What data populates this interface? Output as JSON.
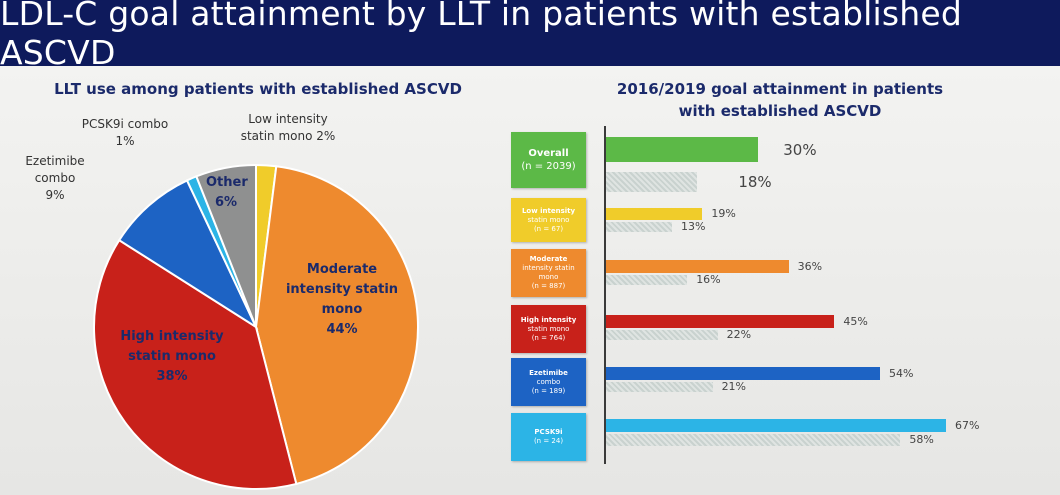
{
  "page_title": "LDL-C goal attainment by LLT in patients with established ASCVD",
  "colors": {
    "header_bg": "#0e1a5c",
    "title_text": "#1b2a6b",
    "low_intensity": "#f0cc2a",
    "moderate": "#ee8a2e",
    "high": "#c8211a",
    "ezetimibe": "#1d63c4",
    "pcsk9i": "#2cb4e6",
    "other": "#8f9090",
    "overall": "#5cb947",
    "year_2016_hatch": "#cfd6d4"
  },
  "chart_data": [
    {
      "type": "pie",
      "title": "LLT use among patients with established ASCVD",
      "slices": [
        {
          "name": "Low intensity statin mono",
          "label_lines": [
            "Low intensity",
            "statin mono 2%"
          ],
          "value": 2,
          "color": "#f0cc2a"
        },
        {
          "name": "Moderate intensity statin mono",
          "label_lines": [
            "Moderate",
            "intensity statin",
            "mono",
            "44%"
          ],
          "value": 44,
          "color": "#ee8a2e"
        },
        {
          "name": "High intensity statin mono",
          "label_lines": [
            "High intensity",
            "statin mono",
            "38%"
          ],
          "value": 38,
          "color": "#c8211a"
        },
        {
          "name": "Ezetimibe combo",
          "label_lines": [
            "Ezetimibe",
            "combo",
            "9%"
          ],
          "value": 9,
          "color": "#1d63c4"
        },
        {
          "name": "PCSK9i combo",
          "label_lines": [
            "PCSK9i combo",
            "1%"
          ],
          "value": 1,
          "color": "#2cb4e6"
        },
        {
          "name": "Other",
          "label_lines": [
            "Other",
            "6%"
          ],
          "value": 6,
          "color": "#8f9090"
        }
      ]
    },
    {
      "type": "bar",
      "orientation": "horizontal",
      "title_lines": [
        "2016/2019 goal attainment in patients",
        "with established ASCVD"
      ],
      "xlim": [
        0,
        67
      ],
      "categories": [
        {
          "label_lines": [
            "Overall",
            "(n = 2039)"
          ],
          "color": "#5cb947",
          "value_a": 30,
          "label_a": "30%",
          "value_b": 18,
          "label_b": "18%"
        },
        {
          "label_lines": [
            "Low intensity",
            "statin mono",
            "(n = 67)"
          ],
          "color": "#f0cc2a",
          "value_a": 19,
          "label_a": "19%",
          "value_b": 13,
          "label_b": "13%"
        },
        {
          "label_lines": [
            "Moderate",
            "intensity statin",
            "mono",
            "(n = 887)"
          ],
          "color": "#ee8a2e",
          "value_a": 36,
          "label_a": "36%",
          "value_b": 16,
          "label_b": "16%"
        },
        {
          "label_lines": [
            "High intensity",
            "statin mono",
            "(n = 764)"
          ],
          "color": "#c8211a",
          "value_a": 45,
          "label_a": "45%",
          "value_b": 22,
          "label_b": "22%"
        },
        {
          "label_lines": [
            "Ezetimibe",
            "combo",
            "(n = 189)"
          ],
          "color": "#1d63c4",
          "value_a": 54,
          "label_a": "54%",
          "value_b": 21,
          "label_b": "21%"
        },
        {
          "label_lines": [
            "PCSK9i",
            "(n = 24)"
          ],
          "color": "#2cb4e6",
          "value_a": 67,
          "label_a": "67%",
          "value_b": 58,
          "label_b": "58%"
        }
      ]
    }
  ]
}
